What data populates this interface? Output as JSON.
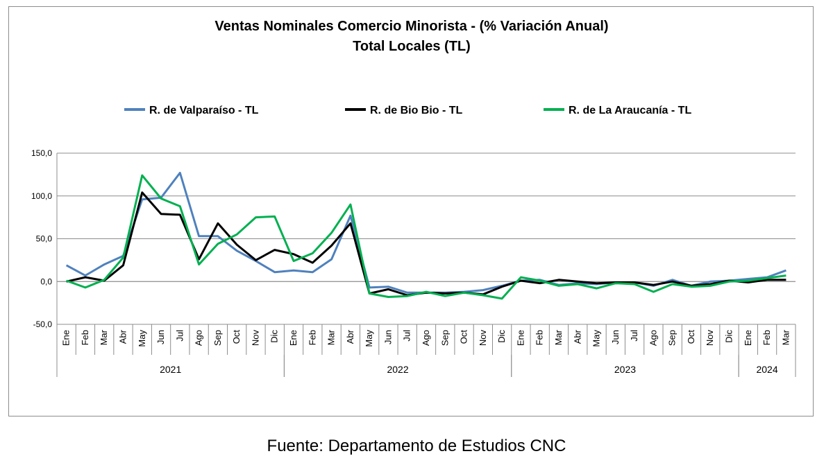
{
  "chart_data": {
    "type": "line",
    "title": "Ventas Nominales Comercio Minorista -  (% Variación Anual)",
    "subtitle": "Total Locales (TL)",
    "xlabel": "",
    "ylabel": "",
    "ylim": [
      -50,
      150
    ],
    "yticks": [
      "150,0",
      "100,0",
      "50,0",
      "0,0",
      "-50,0"
    ],
    "ytick_values": [
      150,
      100,
      50,
      0,
      -50
    ],
    "grid": true,
    "legend_position": "top",
    "categories": [
      "Ene",
      "Feb",
      "Mar",
      "Abr",
      "May",
      "Jun",
      "Jul",
      "Ago",
      "Sep",
      "Oct",
      "Nov",
      "Dic",
      "Ene",
      "Feb",
      "Mar",
      "Abr",
      "May",
      "Jun",
      "Jul",
      "Ago",
      "Sep",
      "Oct",
      "Nov",
      "Dic",
      "Ene",
      "Feb",
      "Mar",
      "Abr",
      "May",
      "Jun",
      "Jul",
      "Ago",
      "Sep",
      "Oct",
      "Nov",
      "Dic",
      "Ene",
      "Feb",
      "Mar"
    ],
    "years": [
      {
        "label": "2021",
        "start": 0,
        "end": 11
      },
      {
        "label": "2022",
        "start": 12,
        "end": 23
      },
      {
        "label": "2023",
        "start": 24,
        "end": 35
      },
      {
        "label": "2024",
        "start": 36,
        "end": 38
      }
    ],
    "series": [
      {
        "name": "R. de Valparaíso - TL",
        "color": "#4f81bd",
        "values": [
          19,
          7,
          20,
          30,
          96,
          98,
          127,
          53,
          53,
          36,
          24,
          11,
          13,
          11,
          26,
          77,
          -7,
          -6,
          -13,
          -13,
          -13,
          -12,
          -10,
          -5,
          1,
          2,
          -4,
          -2,
          -3,
          -1,
          -1,
          -5,
          2,
          -5,
          0,
          1,
          3,
          5,
          13
        ]
      },
      {
        "name": "R. de Bio Bio - TL",
        "color": "#000000",
        "values": [
          0,
          5,
          1,
          19,
          104,
          79,
          78,
          26,
          68,
          43,
          25,
          37,
          32,
          22,
          42,
          68,
          -14,
          -9,
          -16,
          -13,
          -14,
          -13,
          -15,
          -6,
          1,
          -2,
          2,
          0,
          -2,
          -1,
          -1,
          -4,
          0,
          -5,
          -3,
          1,
          -1,
          2,
          2
        ]
      },
      {
        "name": "R. de La Araucanía - TL",
        "color": "#00b050",
        "values": [
          1,
          -7,
          2,
          28,
          124,
          97,
          88,
          20,
          44,
          55,
          75,
          76,
          24,
          33,
          57,
          90,
          -14,
          -18,
          -17,
          -12,
          -17,
          -13,
          -16,
          -20,
          5,
          1,
          -5,
          -3,
          -8,
          -2,
          -3,
          -12,
          -3,
          -6,
          -5,
          0,
          1,
          4,
          7
        ]
      }
    ]
  },
  "source_text": "Fuente: Departamento de Estudios CNC"
}
